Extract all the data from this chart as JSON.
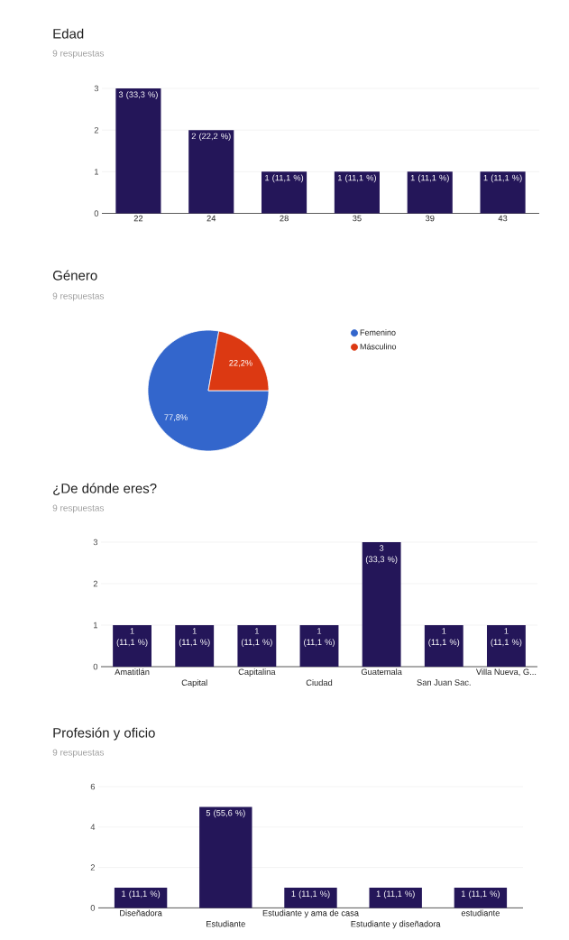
{
  "chart_data": [
    {
      "type": "bar",
      "title": "Edad",
      "subtitle": "9 respuestas",
      "categories": [
        "22",
        "24",
        "28",
        "35",
        "39",
        "43"
      ],
      "values": [
        3,
        2,
        1,
        1,
        1,
        1
      ],
      "value_labels": [
        "3 (33,3 %)",
        "2 (22,2 %)",
        "1 (11,1 %)",
        "1 (11,1 %)",
        "1 (11,1 %)",
        "1 (11,1 %)"
      ],
      "color": "#241659",
      "ylim": [
        0,
        3
      ],
      "yticks": [
        0,
        1,
        2,
        3
      ],
      "grid": "y"
    },
    {
      "type": "pie",
      "title": "Género",
      "subtitle": "9 respuestas",
      "categories": [
        "Femenino",
        "Másculino"
      ],
      "values": [
        77.8,
        22.2
      ],
      "value_labels": [
        "77,8%",
        "22,2%"
      ],
      "colors": [
        "#3366cc",
        "#dc3912"
      ],
      "legend": "right"
    },
    {
      "type": "bar",
      "title": "¿De dónde eres?",
      "subtitle": "9 respuestas",
      "categories": [
        "Amatitlán",
        "Capital",
        "Capitalina",
        "Ciudad",
        "Guatemala",
        "San Juan Sac.",
        "Villa Nueva, G..."
      ],
      "values": [
        1,
        1,
        1,
        1,
        3,
        1,
        1
      ],
      "value_labels": [
        "1 (11,1 %)",
        "1 (11,1 %)",
        "1 (11,1 %)",
        "1 (11,1 %)",
        "3 (33,3 %)",
        "1 (11,1 %)",
        "1 (11,1 %)"
      ],
      "color": "#241659",
      "ylim": [
        0,
        3
      ],
      "yticks": [
        0,
        1,
        2,
        3
      ],
      "grid": "y"
    },
    {
      "type": "bar",
      "title": "Profesión y oficio",
      "subtitle": "9 respuestas",
      "categories": [
        "Diseñadora",
        "Estudiante",
        "Estudiante y ama de casa",
        "Estudiante y diseñadora",
        "estudiante"
      ],
      "values": [
        1,
        5,
        1,
        1,
        1
      ],
      "value_labels": [
        "1 (11,1 %)",
        "5 (55,6 %)",
        "1 (11,1 %)",
        "1 (11,1 %)",
        "1 (11,1 %)"
      ],
      "color": "#241659",
      "ylim": [
        0,
        6
      ],
      "yticks": [
        0,
        2,
        4,
        6
      ],
      "grid": "y"
    }
  ]
}
